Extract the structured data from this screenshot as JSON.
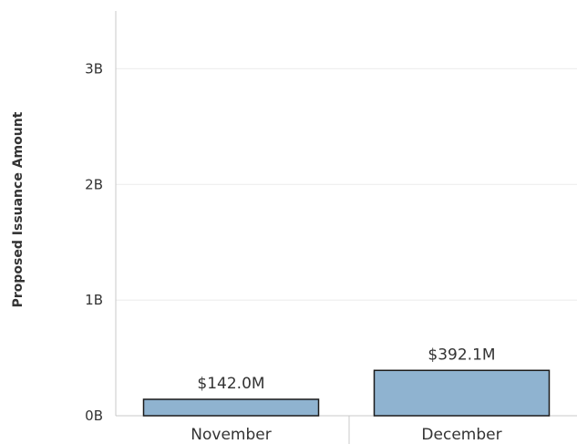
{
  "chart_data": {
    "type": "bar",
    "title": "",
    "xlabel": "",
    "ylabel": "Proposed Issuance Amount",
    "categories": [
      "November",
      "December"
    ],
    "values": [
      142000000,
      392100000
    ],
    "data_labels": [
      "$142.0M",
      "$392.1M"
    ],
    "yticks": [
      0,
      1000000000,
      2000000000,
      3000000000
    ],
    "ytick_labels": [
      "0B",
      "1B",
      "2B",
      "3B"
    ],
    "ylim": [
      0,
      3500000000
    ],
    "grid": true,
    "bar_color": "#8fb3d0",
    "bar_edge_color": "#1a1a1a"
  }
}
